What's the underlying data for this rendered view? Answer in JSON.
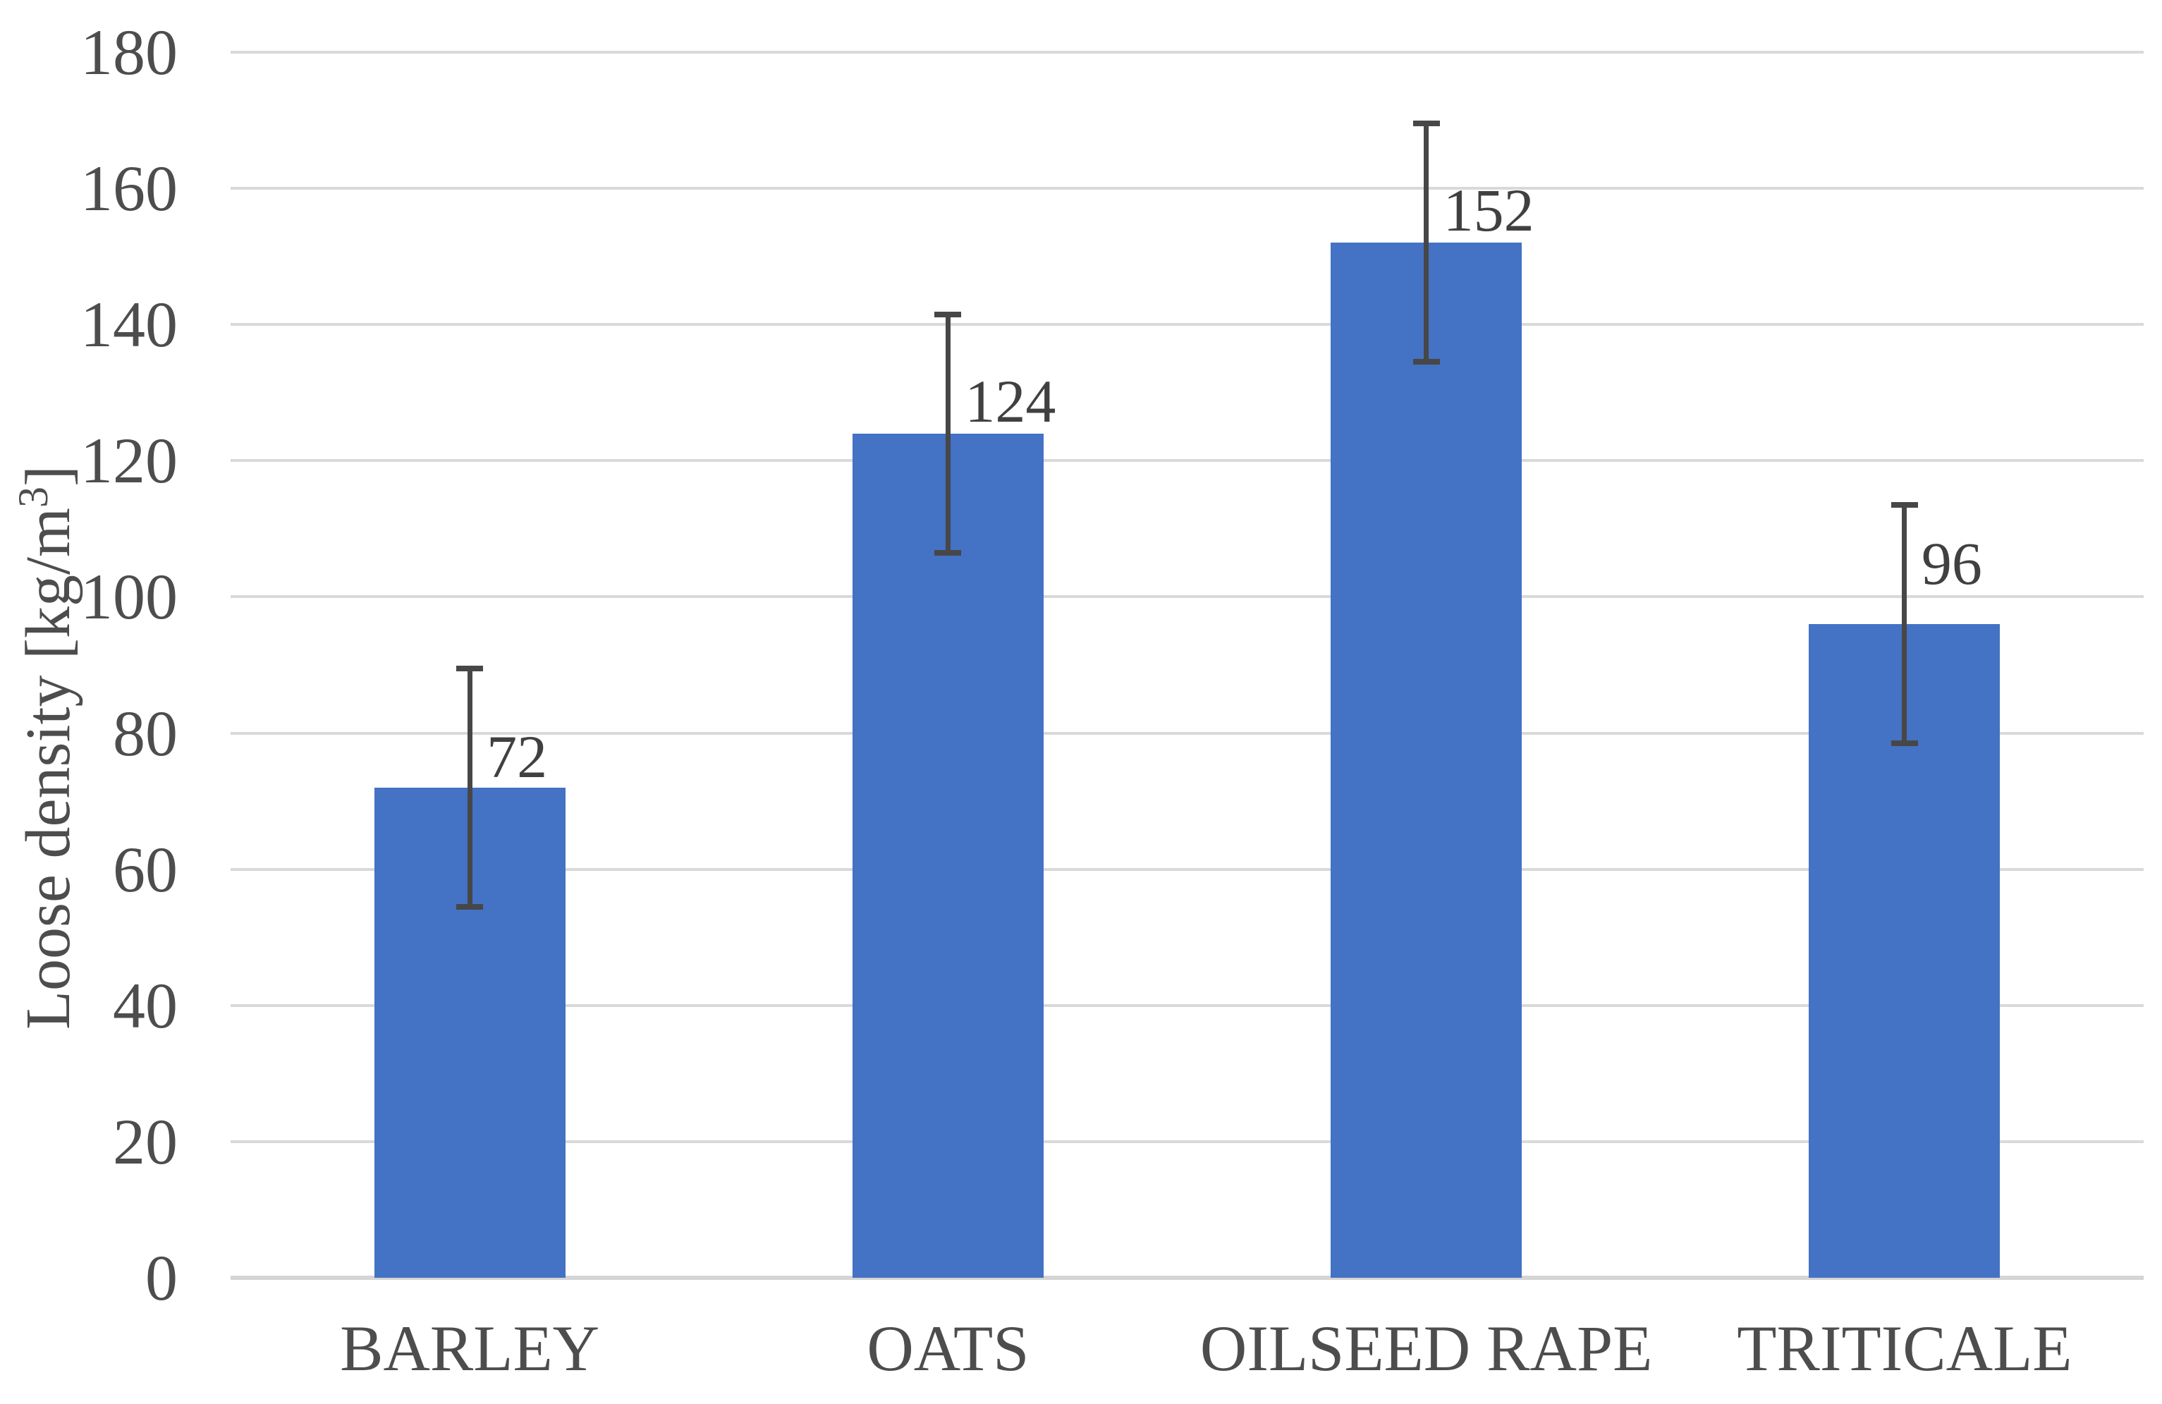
{
  "chart_data": {
    "type": "bar",
    "title": "",
    "categories": [
      "BARLEY",
      "OATS",
      "OILSEED RAPE",
      "TRITICALE"
    ],
    "values": [
      72,
      124,
      152,
      96
    ],
    "value_labels": [
      "72",
      "124",
      "152",
      "96"
    ],
    "error_low": [
      54.5,
      106.5,
      134.5,
      78.5
    ],
    "error_high": [
      89.5,
      141.5,
      169.5,
      113.5
    ],
    "ylabel": "Loose density [kg/m³]",
    "ylabel_parts": {
      "pre": "Loose density [kg/m",
      "sup": "3",
      "post": "]"
    },
    "xlabel": "",
    "ylim": [
      0,
      180
    ],
    "ytick_interval": 20,
    "ytick_labels": [
      "0",
      "20",
      "40",
      "60",
      "80",
      "100",
      "120",
      "140",
      "160",
      "180"
    ],
    "grid": true,
    "legend": "none",
    "bar_width_fraction": 0.4,
    "label_gaps": [
      15,
      17,
      17,
      57
    ],
    "colors": {
      "bar_fill": "#4472C4",
      "error_bar": "#474747",
      "gridline": "#D9D9D9",
      "axis_line": "#D5D5D5",
      "tick_text": "#4D4D4D",
      "value_label_text": "#404040",
      "background": "#FFFFFF"
    }
  }
}
